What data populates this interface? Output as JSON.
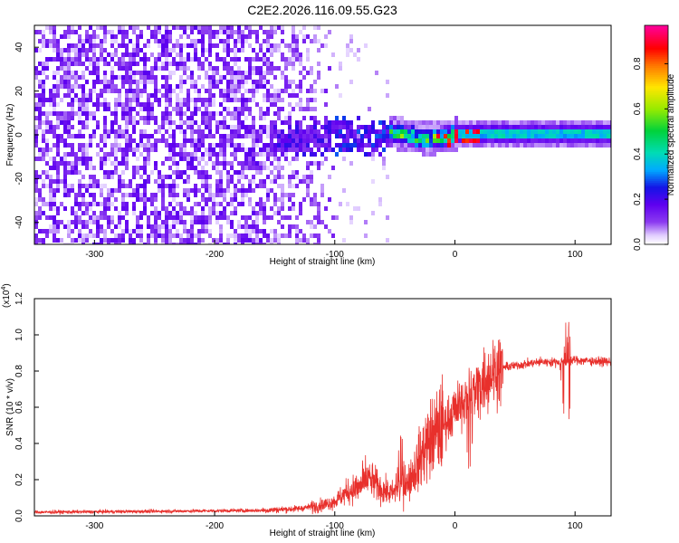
{
  "title": "C2E2.2026.116.09.55.G23",
  "chart_data": [
    {
      "type": "heatmap",
      "id": "spectrogram",
      "xlabel": "Height of straight line (km)",
      "ylabel": "Frequency (Hz)",
      "xlim": [
        -350,
        130
      ],
      "ylim": [
        -50,
        50
      ],
      "xticks": [
        -300,
        -200,
        -100,
        0,
        100
      ],
      "yticks": [
        -40,
        -20,
        0,
        20,
        40
      ],
      "colorbar": {
        "label": "Normalized spectral amplitude",
        "range": [
          0,
          0.97
        ],
        "ticks": [
          "0.0",
          "0.2",
          "0.4",
          "0.6",
          "0.8"
        ],
        "tick_values": [
          0,
          0.2,
          0.4,
          0.6,
          0.8
        ]
      },
      "regions": [
        {
          "x_range": [
            -350,
            -160
          ],
          "description": "noise",
          "mean_amplitude": 0.1
        },
        {
          "x_range": [
            -160,
            -60
          ],
          "description": "transition",
          "mean_amplitude": 0.15
        },
        {
          "x_range": [
            -60,
            130
          ],
          "description": "signal",
          "center_freq": 1.5,
          "peak_amplitude": 0.95
        }
      ]
    },
    {
      "type": "line",
      "id": "snr",
      "xlabel": "Height of straight line (km)",
      "ylabel": "SNR (10 * v/v)",
      "scale_label": "(x10",
      "scale_exp": "4",
      "scale_close": ")",
      "xlim": [
        -350,
        130
      ],
      "ylim": [
        0,
        1.2
      ],
      "xticks": [
        -300,
        -200,
        -100,
        0,
        100
      ],
      "yticks": [
        0,
        0.2,
        0.4,
        0.6,
        0.8,
        1.0,
        1.2
      ],
      "ytick_labels": [
        "0.0",
        "0.2",
        "0.4",
        "0.6",
        "0.8",
        "1.0",
        "1.2"
      ],
      "color": "#e8302c",
      "series_points": [
        [
          -350,
          0.02
        ],
        [
          -250,
          0.025
        ],
        [
          -160,
          0.03
        ],
        [
          -130,
          0.04
        ],
        [
          -110,
          0.06
        ],
        [
          -100,
          0.08
        ],
        [
          -90,
          0.13
        ],
        [
          -80,
          0.16
        ],
        [
          -70,
          0.2
        ],
        [
          -60,
          0.14
        ],
        [
          -50,
          0.12
        ],
        [
          -40,
          0.17
        ],
        [
          -30,
          0.3
        ],
        [
          -25,
          0.38
        ],
        [
          -20,
          0.42
        ],
        [
          -10,
          0.5
        ],
        [
          0,
          0.58
        ],
        [
          10,
          0.65
        ],
        [
          20,
          0.72
        ],
        [
          30,
          0.79
        ],
        [
          40,
          0.82
        ],
        [
          50,
          0.83
        ],
        [
          60,
          0.84
        ],
        [
          70,
          0.85
        ],
        [
          85,
          0.85
        ],
        [
          93,
          0.85
        ],
        [
          100,
          0.86
        ],
        [
          130,
          0.85
        ]
      ],
      "features": [
        {
          "x": -75,
          "peak": 0.37
        },
        {
          "x": -45,
          "peak": 0.5
        },
        {
          "x": 12,
          "peak": 0.85,
          "dip": 0.22
        },
        {
          "x": 93,
          "peak": 1.2,
          "dip": 0.38
        }
      ]
    }
  ]
}
